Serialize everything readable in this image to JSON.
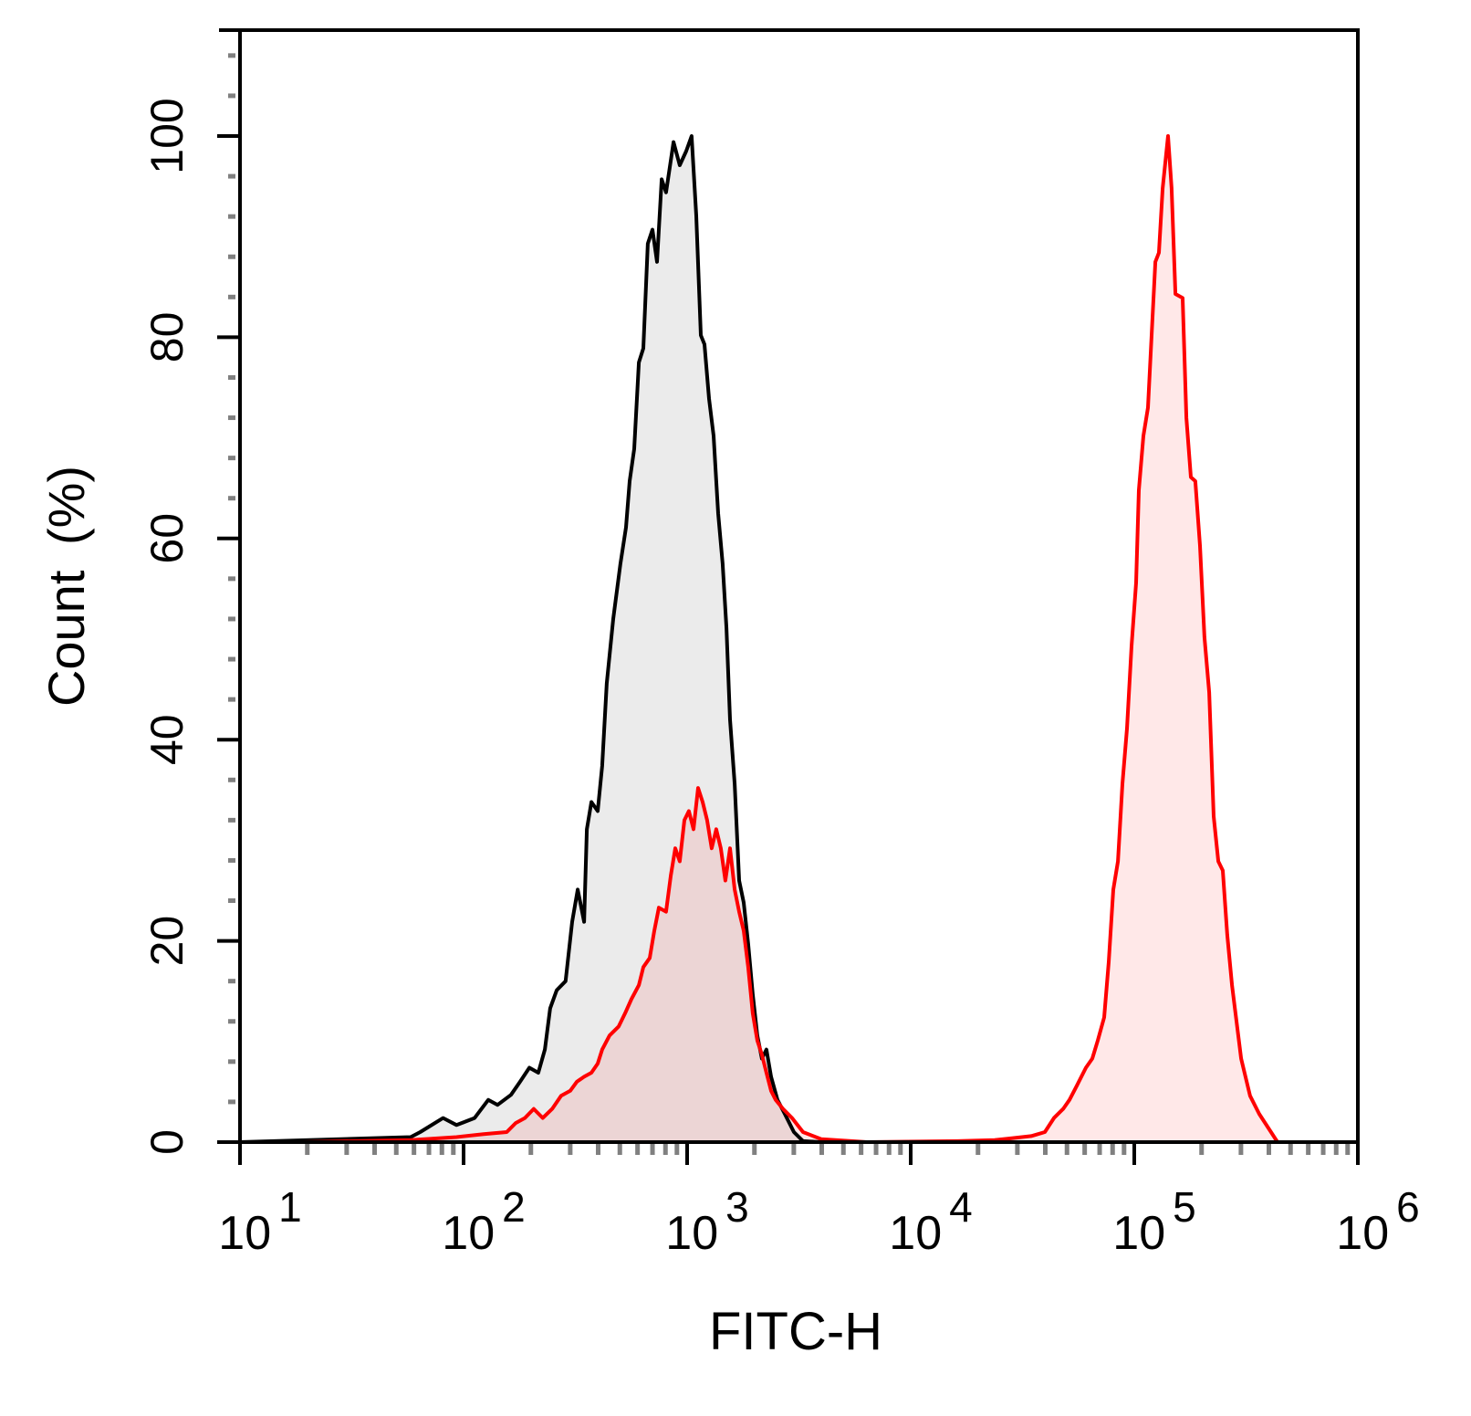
{
  "chart_data": {
    "type": "area",
    "title": "",
    "xlabel": "FITC-H",
    "ylabel": "Count (%)",
    "x_scale": "log",
    "xlim": [
      10,
      1000000
    ],
    "ylim": [
      0,
      110
    ],
    "x_ticks": [
      {
        "base": "10",
        "exp": "1",
        "value": 10
      },
      {
        "base": "10",
        "exp": "2",
        "value": 100
      },
      {
        "base": "10",
        "exp": "3",
        "value": 1000
      },
      {
        "base": "10",
        "exp": "4",
        "value": 10000
      },
      {
        "base": "10",
        "exp": "5",
        "value": 100000
      },
      {
        "base": "10",
        "exp": "6",
        "value": 1000000
      }
    ],
    "y_ticks": [
      "0",
      "20",
      "40",
      "60",
      "80",
      "100"
    ],
    "grid": false,
    "legend": "none",
    "series": [
      {
        "color": "#000000",
        "fill": "#ebebeb",
        "x": [
          10,
          58,
          64,
          81,
          93,
          112,
          129,
          142,
          163,
          179,
          197,
          216,
          231,
          244,
          261,
          286,
          306,
          324,
          346,
          356,
          373,
          398,
          417,
          437,
          467,
          503,
          533,
          553,
          580,
          608,
          637,
          667,
          700,
          733,
          769,
          805,
          869,
          927,
          991,
          1047,
          1099,
          1151,
          1196,
          1253,
          1313,
          1377,
          1442,
          1499,
          1556,
          1631,
          1709,
          1791,
          1876,
          1966,
          2061,
          2160,
          2264,
          2374,
          2536,
          2734,
          3004,
          3300,
          3981
        ],
        "y": [
          0,
          0.5,
          1.0,
          2.4,
          1.7,
          2.4,
          4.2,
          3.7,
          4.7,
          6.0,
          7.4,
          6.9,
          9.2,
          13.3,
          15.1,
          16.0,
          21.9,
          25.1,
          21.9,
          31.1,
          33.8,
          32.9,
          37.4,
          45.6,
          52.0,
          57.5,
          61.1,
          65.7,
          68.9,
          77.5,
          78.9,
          89.3,
          90.7,
          87.5,
          95.7,
          94.4,
          99.4,
          97.1,
          98.5,
          100,
          92.1,
          80.2,
          79.3,
          73.9,
          70.2,
          62.5,
          57.5,
          51.1,
          42.0,
          35.6,
          26.0,
          23.8,
          19.7,
          14.7,
          10.6,
          8.3,
          9.2,
          6.5,
          4.2,
          2.8,
          1.0,
          0.1,
          0
        ]
      },
      {
        "color": "#ff0000",
        "fill": "#ff0000",
        "x": [
          18.8,
          58,
          93,
          123,
          156,
          171,
          188,
          206,
          226,
          249,
          273,
          300,
          321,
          346,
          373,
          398,
          417,
          450,
          494,
          528,
          563,
          608,
          637,
          680,
          713,
          747,
          805,
          845,
          885,
          927,
          972,
          1018,
          1068,
          1119,
          1173,
          1229,
          1288,
          1350,
          1415,
          1483,
          1556,
          1631,
          1709,
          1791,
          1876,
          1966,
          2061,
          2160,
          2264,
          2374,
          2488,
          2684,
          2946,
          3300,
          3981,
          6370,
          16290,
          23760,
          28660,
          34570,
          39810,
          43740,
          48080,
          51320,
          55310,
          60790,
          64880,
          68690,
          73310,
          76850,
          80540,
          84490,
          88510,
          92730,
          97260,
          101900,
          104800,
          109900,
          115100,
          119600,
          124200,
          128900,
          134000,
          141600,
          146900,
          152800,
          164500,
          171000,
          179100,
          187600,
          196700,
          206100,
          216300,
          226500,
          237700,
          248900,
          260600,
          273500,
          300600,
          329600,
          362200,
          437500
        ],
        "y": [
          0,
          0.2,
          0.5,
          0.8,
          1.0,
          1.9,
          2.4,
          3.3,
          2.4,
          3.3,
          4.6,
          5.1,
          6.0,
          6.5,
          6.9,
          7.8,
          9.2,
          10.6,
          11.5,
          12.8,
          14.2,
          15.6,
          17.4,
          18.3,
          21.0,
          23.3,
          22.9,
          26.5,
          29.2,
          27.9,
          32.0,
          32.9,
          31.1,
          35.2,
          33.8,
          32.0,
          29.2,
          31.1,
          29.2,
          26.0,
          29.2,
          25.1,
          22.9,
          21.0,
          17.4,
          12.8,
          10.1,
          8.7,
          6.9,
          5.1,
          4.2,
          3.3,
          2.4,
          1.0,
          0.3,
          0,
          0.1,
          0.2,
          0.4,
          0.6,
          1.0,
          2.4,
          3.3,
          4.2,
          5.6,
          7.4,
          8.3,
          10.1,
          12.4,
          17.9,
          25.1,
          27.9,
          35.6,
          41.1,
          49.3,
          55.6,
          64.8,
          70.2,
          73.0,
          80.2,
          87.5,
          88.4,
          94.8,
          100,
          94.8,
          84.3,
          83.9,
          72.0,
          66.1,
          65.7,
          59.3,
          50.2,
          44.7,
          32.4,
          27.9,
          27.0,
          20.6,
          15.6,
          8.3,
          4.6,
          2.8,
          0
        ]
      }
    ]
  }
}
